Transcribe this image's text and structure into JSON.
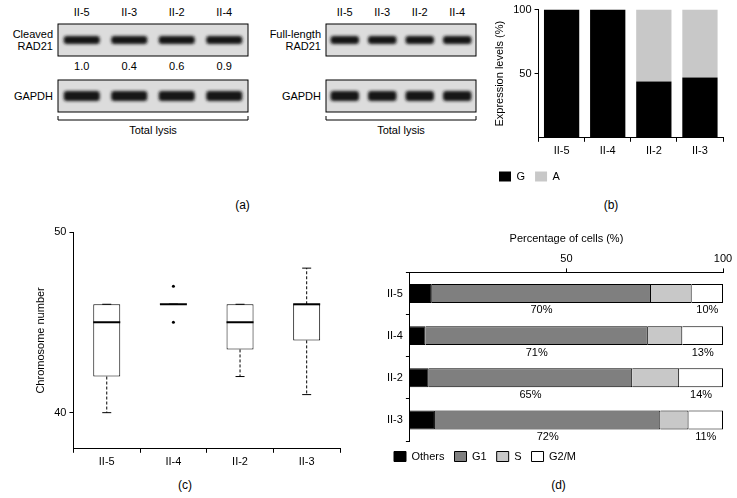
{
  "blots": {
    "caption": "(a)",
    "panels": [
      {
        "lanes": [
          "II-5",
          "II-3",
          "II-2",
          "II-4"
        ],
        "rows": [
          {
            "label": "Cleaved RAD21",
            "quantification": [
              "1.0",
              "0.4",
              "0.6",
              "0.9"
            ]
          },
          {
            "label": "GAPDH"
          }
        ],
        "bracket": "Total lysis"
      },
      {
        "lanes": [
          "II-5",
          "II-3",
          "II-2",
          "II-4"
        ],
        "rows": [
          {
            "label": "Full-length RAD21"
          },
          {
            "label": "GAPDH"
          }
        ],
        "bracket": "Total lysis"
      }
    ]
  },
  "chart_data": [
    {
      "type": "bar",
      "caption": "(b)",
      "stacked": true,
      "categories": [
        "II-5",
        "II-4",
        "II-2",
        "II-3"
      ],
      "ylabel": "Expression levels (%)",
      "ylim": [
        0,
        100
      ],
      "yticks": [
        50,
        100
      ],
      "grid": false,
      "legend": "bottom",
      "series": [
        {
          "name": "G",
          "color": "#000000",
          "values": [
            100,
            100,
            44,
            47
          ]
        },
        {
          "name": "A",
          "color": "#c8c8c8",
          "values": [
            0,
            0,
            56,
            53
          ]
        }
      ]
    },
    {
      "type": "box",
      "caption": "(c)",
      "categories": [
        "II-5",
        "II-4",
        "II-2",
        "II-3"
      ],
      "ylabel": "Chromosome number",
      "ylim": [
        38,
        50
      ],
      "yticks": [
        40,
        50
      ],
      "grid": false,
      "boxes": [
        {
          "min": 40,
          "q1": 42,
          "median": 45,
          "q3": 46,
          "max": 46,
          "outliers": []
        },
        {
          "min": 46,
          "q1": 46,
          "median": 46,
          "q3": 46,
          "max": 46,
          "outliers": [
            45,
            47
          ]
        },
        {
          "min": 42,
          "q1": 43.5,
          "median": 45,
          "q3": 46,
          "max": 46,
          "outliers": []
        },
        {
          "min": 41,
          "q1": 44,
          "median": 46,
          "q3": 46,
          "max": 48,
          "outliers": []
        }
      ]
    },
    {
      "type": "bar",
      "caption": "(d)",
      "orientation": "horizontal",
      "stacked": true,
      "categories": [
        "II-5",
        "II-4",
        "II-2",
        "II-3"
      ],
      "xlabel": "Percentage of cells (%)",
      "xlim": [
        0,
        100
      ],
      "xticks": [
        50,
        100
      ],
      "grid": false,
      "legend": "bottom",
      "series": [
        {
          "name": "Others",
          "color": "#000000",
          "values": [
            7,
            5,
            6,
            8
          ]
        },
        {
          "name": "G1",
          "color": "#7f7f7f",
          "values": [
            70,
            71,
            65,
            72
          ],
          "data_labels": true,
          "value_labels": [
            "70%",
            "71%",
            "65%",
            "72%"
          ]
        },
        {
          "name": "S",
          "color": "#c8c8c8",
          "values": [
            13,
            11,
            15,
            9
          ]
        },
        {
          "name": "G2/M",
          "color": "#ffffff",
          "values": [
            10,
            13,
            14,
            11
          ],
          "data_labels": true,
          "value_labels": [
            "10%",
            "13%",
            "14%",
            "11%"
          ]
        }
      ]
    }
  ]
}
